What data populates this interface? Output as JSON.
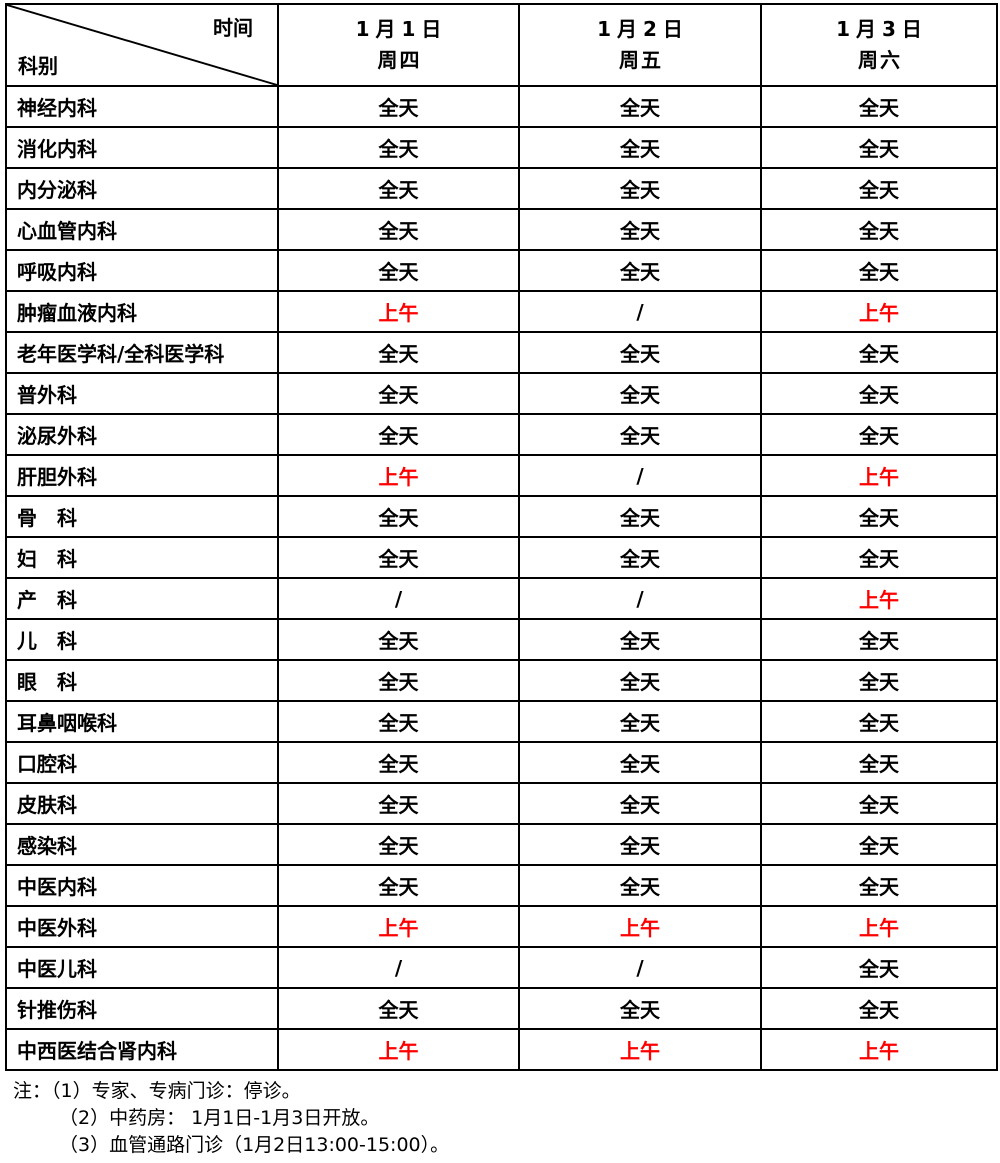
{
  "table": {
    "corner": {
      "time_label": "时间",
      "dept_label": "科别"
    },
    "columns": [
      {
        "date": "1月1日",
        "weekday": "周四"
      },
      {
        "date": "1月2日",
        "weekday": "周五"
      },
      {
        "date": "1月3日",
        "weekday": "周六"
      }
    ],
    "value_colors": {
      "全天": "#000000",
      "上午": "#ff0000",
      "/": "#000000"
    },
    "rows": [
      {
        "dept": "神经内科",
        "values": [
          "全天",
          "全天",
          "全天"
        ]
      },
      {
        "dept": "消化内科",
        "values": [
          "全天",
          "全天",
          "全天"
        ]
      },
      {
        "dept": "内分泌科",
        "values": [
          "全天",
          "全天",
          "全天"
        ]
      },
      {
        "dept": "心血管内科",
        "values": [
          "全天",
          "全天",
          "全天"
        ]
      },
      {
        "dept": "呼吸内科",
        "values": [
          "全天",
          "全天",
          "全天"
        ]
      },
      {
        "dept": "肿瘤血液内科",
        "values": [
          "上午",
          "/",
          "上午"
        ]
      },
      {
        "dept": "老年医学科/全科医学科",
        "values": [
          "全天",
          "全天",
          "全天"
        ]
      },
      {
        "dept": "普外科",
        "values": [
          "全天",
          "全天",
          "全天"
        ]
      },
      {
        "dept": "泌尿外科",
        "values": [
          "全天",
          "全天",
          "全天"
        ]
      },
      {
        "dept": "肝胆外科",
        "values": [
          "上午",
          "/",
          "上午"
        ]
      },
      {
        "dept": "骨　科",
        "values": [
          "全天",
          "全天",
          "全天"
        ]
      },
      {
        "dept": "妇　科",
        "values": [
          "全天",
          "全天",
          "全天"
        ]
      },
      {
        "dept": "产　科",
        "values": [
          "/",
          "/",
          "上午"
        ]
      },
      {
        "dept": "儿　科",
        "values": [
          "全天",
          "全天",
          "全天"
        ]
      },
      {
        "dept": "眼　科",
        "values": [
          "全天",
          "全天",
          "全天"
        ]
      },
      {
        "dept": "耳鼻咽喉科",
        "values": [
          "全天",
          "全天",
          "全天"
        ]
      },
      {
        "dept": "口腔科",
        "values": [
          "全天",
          "全天",
          "全天"
        ]
      },
      {
        "dept": "皮肤科",
        "values": [
          "全天",
          "全天",
          "全天"
        ]
      },
      {
        "dept": "感染科",
        "values": [
          "全天",
          "全天",
          "全天"
        ]
      },
      {
        "dept": "中医内科",
        "values": [
          "全天",
          "全天",
          "全天"
        ]
      },
      {
        "dept": "中医外科",
        "values": [
          "上午",
          "上午",
          "上午"
        ]
      },
      {
        "dept": "中医儿科",
        "values": [
          "/",
          "/",
          "全天"
        ]
      },
      {
        "dept": "针推伤科",
        "values": [
          "全天",
          "全天",
          "全天"
        ]
      },
      {
        "dept": "中西医结合肾内科",
        "values": [
          "上午",
          "上午",
          "上午"
        ]
      }
    ]
  },
  "notes": [
    "注：（1）专家、专病门诊：停诊。",
    "（2）中药房： 1月1日-1月3日开放。",
    "（3）血管通路门诊（1月2日13:00-15:00）。"
  ]
}
